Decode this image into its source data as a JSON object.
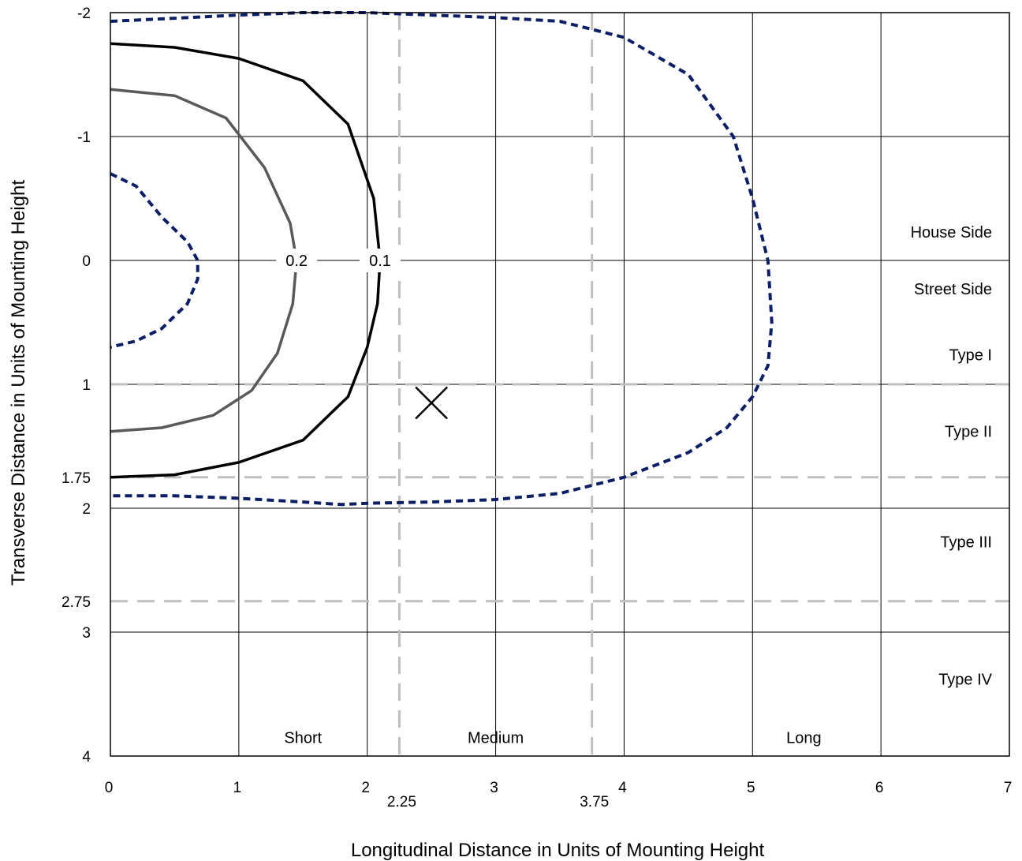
{
  "chart_data": {
    "type": "line",
    "xlabel": "Longitudinal Distance in Units of Mounting Height",
    "ylabel": "Transverse Distance in Units of Mounting Height",
    "xlim": [
      0,
      7
    ],
    "ylim": [
      -2,
      4
    ],
    "y_inverted": true,
    "grid": true,
    "x_ticks": [
      "0",
      "1",
      "2",
      "3",
      "4",
      "5",
      "6",
      "7"
    ],
    "y_ticks": [
      "-2",
      "-1",
      "0",
      "1",
      "2",
      "3",
      "4"
    ],
    "x_boundaries": [
      {
        "value": 2.25,
        "label": "2.25"
      },
      {
        "value": 3.75,
        "label": "3.75"
      }
    ],
    "y_boundaries": [
      {
        "value": 1,
        "label": ""
      },
      {
        "value": 1.75,
        "label": "1.75"
      },
      {
        "value": 2.75,
        "label": "2.75"
      }
    ],
    "region_labels": {
      "right": [
        {
          "text": "House Side",
          "y": -0.23
        },
        {
          "text": "Street Side",
          "y": 0.23
        },
        {
          "text": "Type I",
          "y": 0.76
        },
        {
          "text": "Type II",
          "y": 1.38
        },
        {
          "text": "Type III",
          "y": 2.27
        },
        {
          "text": "Type IV",
          "y": 3.38
        }
      ],
      "bottom": [
        {
          "text": "Short",
          "x": 1.5
        },
        {
          "text": "Medium",
          "x": 3.0
        },
        {
          "text": "Long",
          "x": 5.4
        }
      ]
    },
    "marker": {
      "symbol": "X",
      "x": 2.5,
      "y": 1.15
    },
    "series": [
      {
        "id": "outer",
        "style": "dashed",
        "color": "#0b1e66",
        "x": [
          0,
          0.4,
          1.0,
          1.5,
          2.0,
          2.5,
          3.0,
          3.5,
          4.0,
          4.5,
          4.85,
          5.0,
          5.12,
          5.15,
          5.12,
          5.0,
          4.8,
          4.5,
          4.0,
          3.5,
          3.0,
          2.5,
          2.0,
          1.8,
          1.5,
          1.0,
          0.5,
          0
        ],
        "y": [
          -1.93,
          -1.95,
          -1.98,
          -2.0,
          -2.0,
          -1.98,
          -1.96,
          -1.93,
          -1.8,
          -1.5,
          -1.0,
          -0.5,
          0.0,
          0.5,
          0.85,
          1.1,
          1.35,
          1.55,
          1.75,
          1.88,
          1.93,
          1.95,
          1.96,
          1.97,
          1.95,
          1.92,
          1.9,
          1.9
        ]
      },
      {
        "id": "inner",
        "style": "dashed",
        "color": "#0b1e66",
        "x": [
          0,
          0.2,
          0.4,
          0.6,
          0.68,
          0.68,
          0.6,
          0.4,
          0.2,
          0
        ],
        "y": [
          -0.7,
          -0.6,
          -0.35,
          -0.15,
          0.0,
          0.15,
          0.35,
          0.55,
          0.65,
          0.7
        ]
      },
      {
        "id": "iso-0.1",
        "label": "0.1",
        "style": "solid",
        "color": "#000000",
        "x": [
          0,
          0.5,
          1.0,
          1.5,
          1.85,
          2.05,
          2.1,
          2.08,
          2.0,
          1.85,
          1.5,
          1.0,
          0.5,
          0
        ],
        "y": [
          -1.75,
          -1.72,
          -1.63,
          -1.45,
          -1.1,
          -0.5,
          0.0,
          0.35,
          0.7,
          1.1,
          1.45,
          1.63,
          1.73,
          1.75
        ]
      },
      {
        "id": "iso-0.2",
        "label": "0.2",
        "style": "solid",
        "color": "#595959",
        "x": [
          0,
          0.5,
          0.9,
          1.2,
          1.4,
          1.45,
          1.42,
          1.3,
          1.1,
          0.8,
          0.4,
          0
        ],
        "y": [
          -1.38,
          -1.33,
          -1.15,
          -0.75,
          -0.3,
          0.0,
          0.35,
          0.75,
          1.05,
          1.25,
          1.35,
          1.38
        ]
      }
    ]
  }
}
